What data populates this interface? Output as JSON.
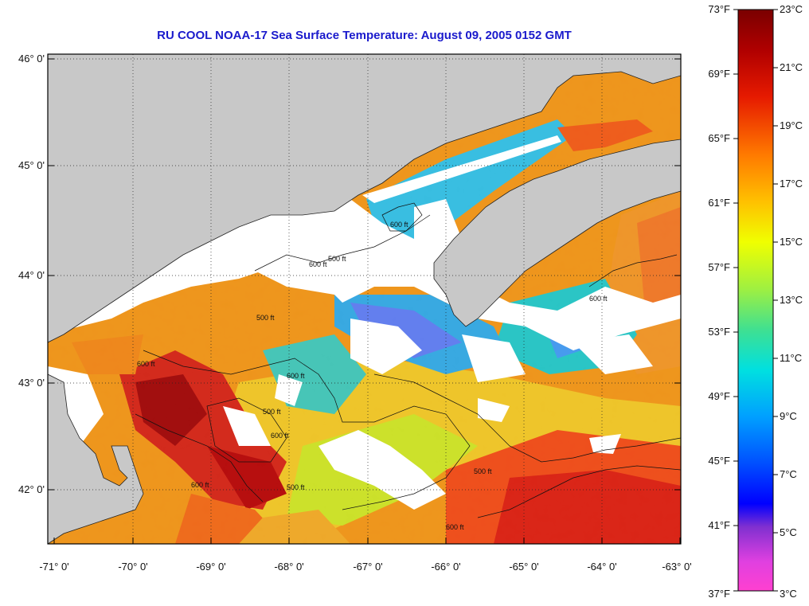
{
  "title": "RU COOL  NOAA-17  Sea Surface Temperature:  August 09, 2005 0152 GMT",
  "lat_ticks": [
    "46° 0'",
    "45° 0'",
    "44° 0'",
    "43° 0'",
    "42° 0'"
  ],
  "lon_ticks": [
    "-71° 0'",
    "-70° 0'",
    "-69° 0'",
    "-68° 0'",
    "-67° 0'",
    "-66° 0'",
    "-65° 0'",
    "-64° 0'",
    "-63° 0'"
  ],
  "colorbar": {
    "fahrenheit": [
      "73°F",
      "69°F",
      "65°F",
      "61°F",
      "57°F",
      "53°F",
      "49°F",
      "45°F",
      "41°F",
      "37°F"
    ],
    "celsius": [
      "23°C",
      "21°C",
      "19°C",
      "17°C",
      "15°C",
      "13°C",
      "11°C",
      "9°C",
      "7°C",
      "5°C",
      "3°C"
    ]
  },
  "contour_labels": [
    "600 ft",
    "500 ft",
    "600 ft",
    "600 ft",
    "500 ft",
    "600 ft",
    "500 ft",
    "600 ft",
    "500 ft",
    "600 ft",
    "500 ft",
    "600 ft",
    "600 ft"
  ],
  "colors": {
    "land": "#c8c8c8",
    "cloud": "#ffffff",
    "title": "#1a1acc"
  }
}
